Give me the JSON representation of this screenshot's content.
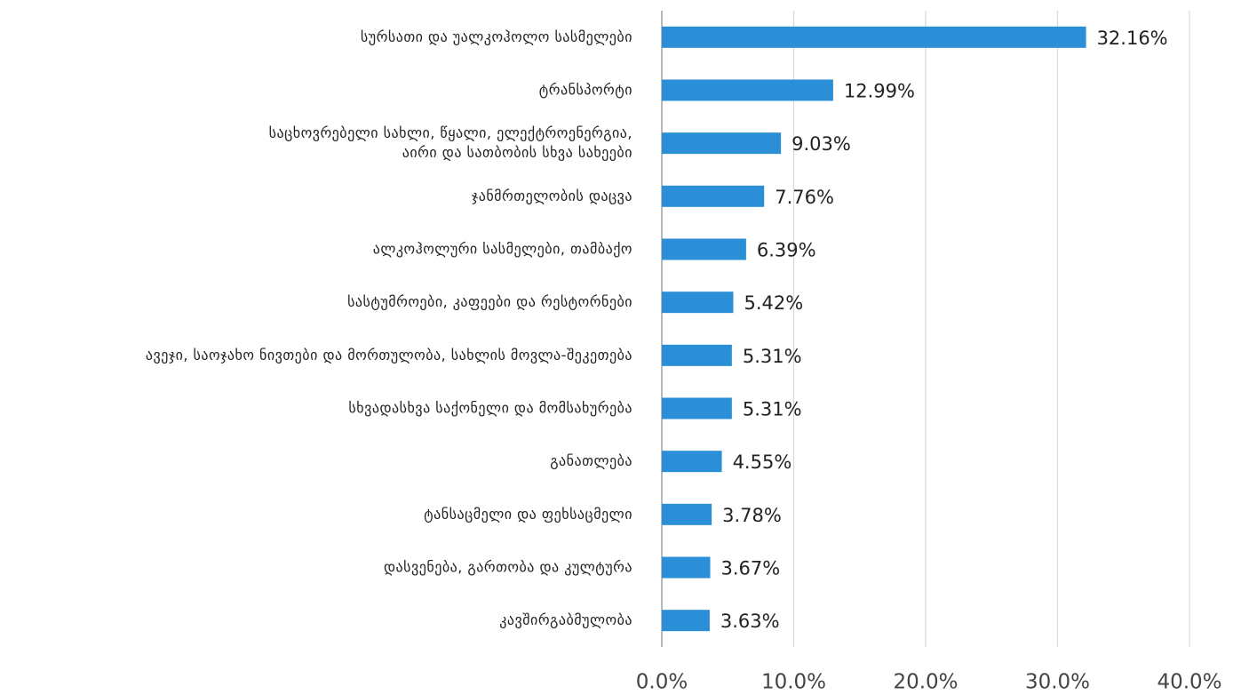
{
  "chart_data": {
    "type": "bar",
    "orientation": "horizontal",
    "categories": [
      "სურსათი და უალკოჰოლო სასმელები",
      "ტრანსპორტი",
      "საცხოვრებელი სახლი, წყალი, ელექტროენერგია,\nაირი და სათბობის სხვა სახეები",
      "ჯანმრთელობის დაცვა",
      "ალკოჰოლური სასმელები, თამბაქო",
      "სასტუმროები, კაფეები და რესტორნები",
      "ავეჯი, საოჯახო ნივთები და მორთულობა, სახლის მოვლა-შეკეთება",
      "სხვადასხვა საქონელი და მომსახურება",
      "განათლება",
      "ტანსაცმელი და ფეხსაცმელი",
      "დასვენება, გართობა და კულტურა",
      "კავშირგაბმულობა"
    ],
    "values": [
      32.16,
      12.99,
      9.03,
      7.76,
      6.39,
      5.42,
      5.31,
      5.31,
      4.55,
      3.78,
      3.67,
      3.63
    ],
    "value_labels": [
      "32.16%",
      "12.99%",
      "9.03%",
      "7.76%",
      "6.39%",
      "5.42%",
      "5.31%",
      "5.31%",
      "4.55%",
      "3.78%",
      "3.67%",
      "3.63%"
    ],
    "color": "#2a8fd6",
    "xlim": [
      0,
      40
    ],
    "xticks": [
      {
        "value": 0,
        "label": "0.0%"
      },
      {
        "value": 10,
        "label": "10.0%"
      },
      {
        "value": 20,
        "label": "20.0%"
      },
      {
        "value": 30,
        "label": "30.0%"
      },
      {
        "value": 40,
        "label": "40.0%"
      }
    ],
    "grid": true
  }
}
